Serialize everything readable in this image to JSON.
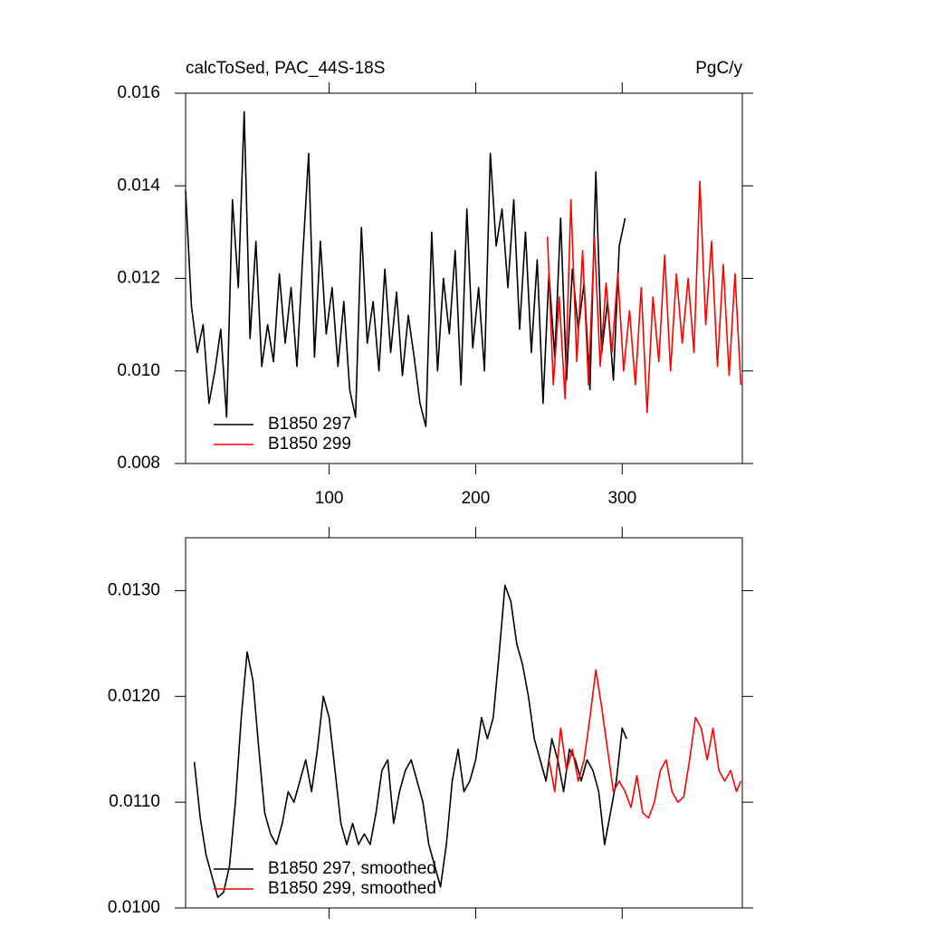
{
  "chart_data": [
    {
      "type": "line",
      "title": "calcToSed, PAC_44S-18S",
      "subtitle": "PgC/y",
      "xlim": [
        2,
        382
      ],
      "xticks": [
        100,
        200,
        300
      ],
      "ylim": [
        0.008,
        0.016
      ],
      "yticks": [
        0.008,
        {
          "value": 0.01,
          "label": "0.010"
        },
        0.012,
        0.014,
        0.016
      ],
      "legend": "lower left",
      "series": [
        {
          "name": "B1850 297",
          "color": "#000000",
          "x": [
            2,
            6,
            10,
            14,
            18,
            22,
            26,
            30,
            34,
            38,
            42,
            46,
            50,
            54,
            58,
            62,
            66,
            70,
            74,
            78,
            82,
            86,
            90,
            94,
            98,
            102,
            106,
            110,
            114,
            118,
            122,
            126,
            130,
            134,
            138,
            142,
            146,
            150,
            154,
            158,
            162,
            166,
            170,
            174,
            178,
            182,
            186,
            190,
            194,
            198,
            202,
            206,
            210,
            214,
            218,
            222,
            226,
            230,
            234,
            238,
            242,
            246,
            250,
            254,
            258,
            262,
            266,
            270,
            274,
            278,
            282,
            286,
            290,
            294,
            298,
            302
          ],
          "values": [
            0.0139,
            0.0114,
            0.0104,
            0.011,
            0.0093,
            0.01,
            0.0109,
            0.009,
            0.0137,
            0.0118,
            0.0156,
            0.0107,
            0.0128,
            0.0101,
            0.011,
            0.0102,
            0.0121,
            0.0106,
            0.0118,
            0.0101,
            0.0125,
            0.0147,
            0.0103,
            0.0128,
            0.0108,
            0.0118,
            0.0101,
            0.0115,
            0.0096,
            0.009,
            0.0131,
            0.0106,
            0.0115,
            0.01,
            0.0122,
            0.0104,
            0.0117,
            0.0099,
            0.0112,
            0.0103,
            0.0093,
            0.0088,
            0.013,
            0.01,
            0.012,
            0.0108,
            0.0126,
            0.0097,
            0.0135,
            0.0105,
            0.0118,
            0.01,
            0.0147,
            0.0127,
            0.0135,
            0.0118,
            0.0137,
            0.0109,
            0.013,
            0.0104,
            0.0124,
            0.0093,
            0.0121,
            0.0103,
            0.0133,
            0.0098,
            0.0122,
            0.0109,
            0.0119,
            0.0096,
            0.0143,
            0.0104,
            0.0115,
            0.0098,
            0.0127,
            0.0133
          ]
        },
        {
          "name": "B1850 299",
          "color": "#ff0000",
          "x": [
            249,
            253,
            257,
            261,
            265,
            269,
            273,
            277,
            281,
            285,
            289,
            293,
            297,
            301,
            305,
            309,
            313,
            317,
            321,
            325,
            329,
            333,
            337,
            341,
            345,
            349,
            353,
            357,
            361,
            365,
            369,
            373,
            377,
            381
          ],
          "values": [
            0.0129,
            0.0097,
            0.0116,
            0.0094,
            0.0137,
            0.0102,
            0.0126,
            0.0097,
            0.0129,
            0.0101,
            0.0119,
            0.0104,
            0.0121,
            0.01,
            0.0113,
            0.0097,
            0.0118,
            0.0091,
            0.0116,
            0.0102,
            0.0125,
            0.01,
            0.0121,
            0.0106,
            0.012,
            0.0104,
            0.0141,
            0.011,
            0.0128,
            0.0101,
            0.0123,
            0.0099,
            0.0121,
            0.0097
          ]
        }
      ]
    },
    {
      "type": "line",
      "xlim": [
        2,
        382
      ],
      "xticks": [
        100,
        200,
        300
      ],
      "ylim": [
        0.01,
        0.0135
      ],
      "yticks": [
        {
          "value": 0.01,
          "label": "0.0100"
        },
        {
          "value": 0.011,
          "label": "0.0110"
        },
        {
          "value": 0.012,
          "label": "0.0120"
        },
        {
          "value": 0.013,
          "label": "0.0130"
        }
      ],
      "legend": "lower left",
      "series": [
        {
          "name": "B1850 297, smoothed",
          "color": "#000000",
          "x": [
            8,
            12,
            16,
            20,
            24,
            28,
            32,
            36,
            40,
            44,
            48,
            52,
            56,
            60,
            64,
            68,
            72,
            76,
            80,
            84,
            88,
            92,
            96,
            100,
            104,
            108,
            112,
            116,
            120,
            124,
            128,
            132,
            136,
            140,
            144,
            148,
            152,
            156,
            160,
            164,
            168,
            172,
            176,
            180,
            184,
            188,
            192,
            196,
            200,
            204,
            208,
            212,
            216,
            220,
            224,
            228,
            232,
            236,
            240,
            244,
            248,
            252,
            256,
            260,
            264,
            268,
            272,
            276,
            280,
            284,
            288,
            292,
            296,
            300,
            303
          ],
          "values": [
            0.01138,
            0.01085,
            0.0105,
            0.0103,
            0.0101,
            0.01015,
            0.0104,
            0.011,
            0.0118,
            0.01242,
            0.01215,
            0.0115,
            0.0109,
            0.0107,
            0.0106,
            0.0108,
            0.0111,
            0.011,
            0.0112,
            0.0114,
            0.0111,
            0.0115,
            0.012,
            0.0118,
            0.0113,
            0.0108,
            0.0106,
            0.0108,
            0.0106,
            0.0107,
            0.0106,
            0.0109,
            0.0113,
            0.0114,
            0.0108,
            0.0111,
            0.0113,
            0.0114,
            0.0112,
            0.011,
            0.0106,
            0.0104,
            0.0102,
            0.0106,
            0.0112,
            0.0115,
            0.0111,
            0.0112,
            0.0114,
            0.0118,
            0.0116,
            0.0118,
            0.0124,
            0.01305,
            0.0129,
            0.0125,
            0.0123,
            0.012,
            0.0116,
            0.0114,
            0.0112,
            0.0116,
            0.0114,
            0.0111,
            0.0115,
            0.0114,
            0.0112,
            0.0114,
            0.0113,
            0.0111,
            0.0106,
            0.0109,
            0.0112,
            0.0117,
            0.0116
          ]
        },
        {
          "name": "B1850 299, smoothed",
          "color": "#ff0000",
          "x": [
            250,
            254,
            258,
            262,
            266,
            270,
            274,
            278,
            282,
            286,
            290,
            294,
            298,
            302,
            306,
            310,
            314,
            318,
            322,
            326,
            330,
            334,
            338,
            342,
            346,
            350,
            354,
            358,
            362,
            366,
            370,
            374,
            378,
            381
          ],
          "values": [
            0.0114,
            0.0111,
            0.0117,
            0.0113,
            0.0115,
            0.0112,
            0.0114,
            0.0118,
            0.01225,
            0.0119,
            0.0115,
            0.0111,
            0.0112,
            0.0111,
            0.01095,
            0.01125,
            0.0109,
            0.01085,
            0.011,
            0.0113,
            0.0114,
            0.0111,
            0.011,
            0.01105,
            0.0114,
            0.0118,
            0.0117,
            0.0114,
            0.0117,
            0.0113,
            0.0112,
            0.0113,
            0.0111,
            0.0112
          ]
        }
      ]
    }
  ]
}
